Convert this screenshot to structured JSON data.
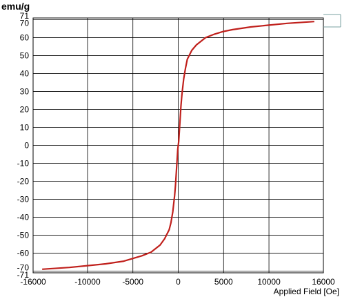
{
  "chart_data": {
    "type": "line",
    "ylabel": "emu/g",
    "xlabel": "Applied Field [Oe]",
    "xlim": [
      -16000,
      16000
    ],
    "ylim": [
      -71,
      71
    ],
    "x_ticks": [
      -16000,
      -10000,
      -5000,
      0,
      5000,
      10000,
      16000
    ],
    "y_ticks": [
      71,
      70,
      60,
      50,
      40,
      30,
      20,
      10,
      0,
      -10,
      -20,
      -30,
      -40,
      -50,
      -60,
      -70,
      -71
    ],
    "grid": true,
    "line_color": "#c0201c",
    "series": [
      {
        "name": "",
        "x": [
          -15000,
          -12000,
          -10000,
          -8000,
          -6000,
          -5000,
          -4000,
          -3000,
          -2000,
          -1500,
          -1000,
          -800,
          -600,
          -400,
          -300,
          -200,
          -100,
          -50,
          0,
          50,
          100,
          200,
          300,
          400,
          600,
          800,
          1000,
          1500,
          2000,
          3000,
          4000,
          5000,
          6000,
          8000,
          10000,
          12000,
          15000
        ],
        "y": [
          -69,
          -68,
          -67,
          -66,
          -64.5,
          -63,
          -61.5,
          -59.5,
          -55.5,
          -52,
          -47,
          -43,
          -37,
          -28,
          -22,
          -14,
          -6,
          -2,
          0,
          2,
          6,
          14,
          22,
          28,
          37,
          43,
          48,
          53,
          56,
          60,
          62,
          63.5,
          64.5,
          66,
          67,
          68,
          69
        ]
      }
    ]
  }
}
